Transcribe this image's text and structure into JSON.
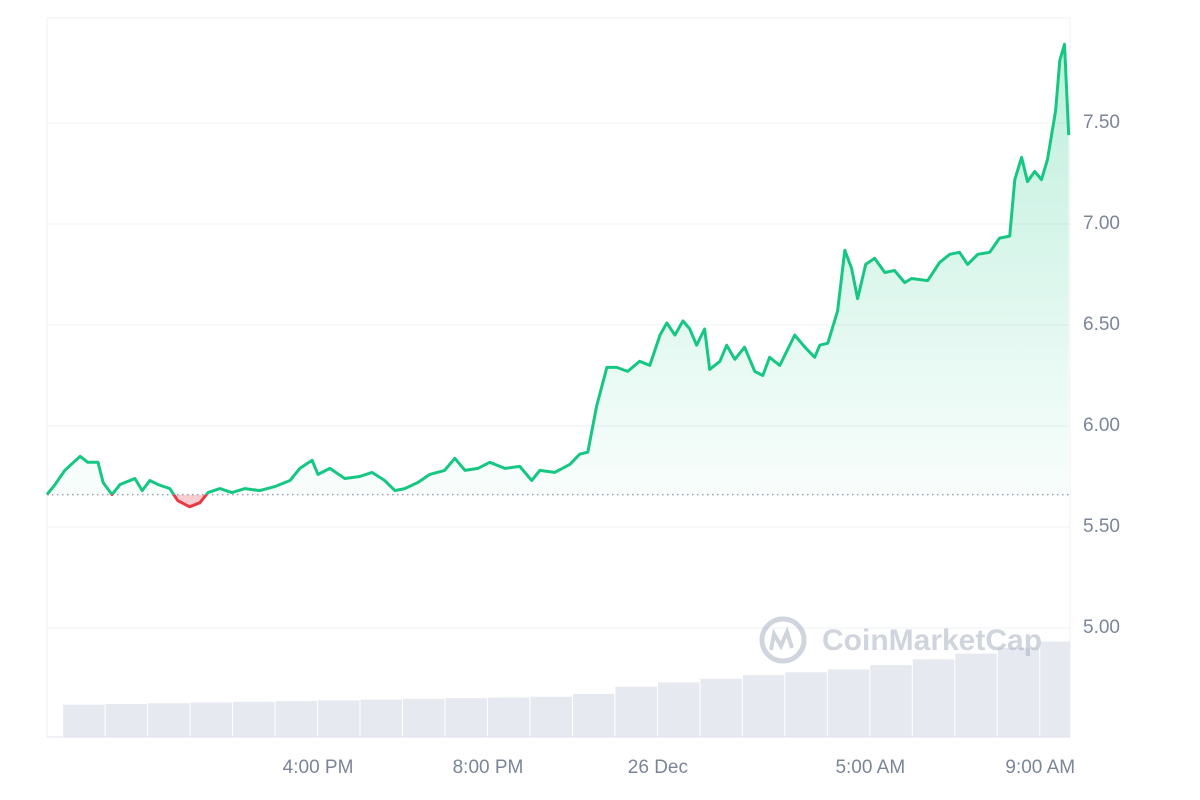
{
  "chart_data": {
    "type": "line",
    "color": "#16c784",
    "down_color": "#ea3943",
    "baseline": 5.66,
    "watermark": "CoinMarketCap",
    "xlim": [
      9.62,
      33.7
    ],
    "xticks": [
      {
        "value": 16,
        "label": "4:00 PM"
      },
      {
        "value": 20,
        "label": "8:00 PM"
      },
      {
        "value": 24,
        "label": "26 Dec"
      },
      {
        "value": 29,
        "label": "5:00 AM"
      },
      {
        "value": 33,
        "label": "9:00 AM"
      }
    ],
    "ylim": [
      4.46,
      8.02
    ],
    "yticks": [
      {
        "value": 5,
        "label": "5.00"
      },
      {
        "value": 5.5,
        "label": "5.50"
      },
      {
        "value": 6,
        "label": "6.00"
      },
      {
        "value": 6.5,
        "label": "6.50"
      },
      {
        "value": 7,
        "label": "7.00"
      },
      {
        "value": 7.5,
        "label": "7.50"
      }
    ],
    "grid": true,
    "x": [
      9.62,
      9.81,
      10.04,
      10.4,
      10.58,
      10.82,
      10.94,
      11.15,
      11.34,
      11.69,
      11.86,
      12.04,
      12.23,
      12.51,
      12.7,
      12.98,
      13.22,
      13.41,
      13.69,
      13.97,
      14.28,
      14.63,
      14.98,
      15.34,
      15.57,
      15.86,
      16.0,
      16.28,
      16.63,
      16.98,
      17.27,
      17.57,
      17.81,
      18.04,
      18.35,
      18.63,
      18.98,
      19.22,
      19.46,
      19.76,
      20.04,
      20.4,
      20.75,
      21.03,
      21.22,
      21.57,
      21.93,
      22.16,
      22.35,
      22.56,
      22.8,
      23.03,
      23.29,
      23.57,
      23.81,
      24.05,
      24.21,
      24.4,
      24.59,
      24.75,
      24.91,
      25.1,
      25.22,
      25.46,
      25.62,
      25.81,
      26.04,
      26.28,
      26.47,
      26.63,
      26.87,
      27.22,
      27.46,
      27.69,
      27.81,
      28.0,
      28.23,
      28.4,
      28.56,
      28.7,
      28.89,
      29.1,
      29.34,
      29.57,
      29.81,
      29.97,
      30.35,
      30.63,
      30.87,
      31.1,
      31.29,
      31.53,
      31.81,
      32.04,
      32.28,
      32.4,
      32.56,
      32.7,
      32.87,
      33.03,
      33.17,
      33.36,
      33.46,
      33.57,
      33.67
    ],
    "values": [
      5.66,
      5.71,
      5.78,
      5.85,
      5.82,
      5.82,
      5.72,
      5.66,
      5.71,
      5.74,
      5.68,
      5.73,
      5.71,
      5.69,
      5.63,
      5.6,
      5.62,
      5.67,
      5.69,
      5.67,
      5.69,
      5.68,
      5.7,
      5.73,
      5.79,
      5.83,
      5.76,
      5.79,
      5.74,
      5.75,
      5.77,
      5.73,
      5.68,
      5.69,
      5.72,
      5.76,
      5.78,
      5.84,
      5.78,
      5.79,
      5.82,
      5.79,
      5.8,
      5.73,
      5.78,
      5.77,
      5.81,
      5.86,
      5.87,
      6.1,
      6.29,
      6.29,
      6.27,
      6.32,
      6.3,
      6.45,
      6.51,
      6.45,
      6.52,
      6.48,
      6.4,
      6.48,
      6.28,
      6.32,
      6.4,
      6.33,
      6.39,
      6.27,
      6.25,
      6.34,
      6.3,
      6.45,
      6.39,
      6.34,
      6.4,
      6.41,
      6.57,
      6.87,
      6.78,
      6.63,
      6.8,
      6.83,
      6.76,
      6.77,
      6.71,
      6.73,
      6.72,
      6.81,
      6.85,
      6.86,
      6.8,
      6.85,
      6.86,
      6.93,
      6.94,
      7.22,
      7.33,
      7.21,
      7.26,
      7.22,
      7.32,
      7.56,
      7.81,
      7.89,
      7.44
    ],
    "y2lim": [
      0,
      100
    ],
    "volume": {
      "color": "#e6e9ef",
      "x": [
        10,
        11,
        12,
        13,
        14,
        15,
        16,
        17,
        18,
        19,
        20,
        21,
        22,
        23,
        24,
        25,
        26,
        27,
        28,
        29,
        30,
        31,
        32,
        33
      ],
      "values": [
        4.5,
        4.6,
        4.7,
        4.8,
        4.9,
        5.0,
        5.1,
        5.2,
        5.3,
        5.4,
        5.5,
        5.6,
        6.0,
        7.0,
        7.6,
        8.1,
        8.6,
        9.0,
        9.4,
        10.0,
        10.8,
        11.6,
        12.4,
        13.3
      ]
    }
  }
}
